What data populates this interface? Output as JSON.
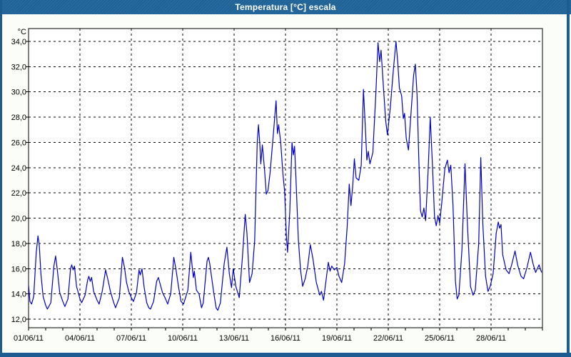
{
  "window": {
    "title": "Temperatura [°C] escala"
  },
  "colors": {
    "titlebar": "#1F6499",
    "frame": "#1C5C90",
    "content_background": "#FBFDF9",
    "plot_background": "#FFFFFF",
    "grid": "#000000",
    "line": "#0000C8",
    "title_text": "#FFFFFF",
    "label_text": "#000000"
  },
  "chart_data": {
    "type": "line",
    "title": "Temperatura [°C] escala",
    "unit_label": "°C",
    "ylabel": "°C",
    "xlabel": "",
    "ylim": [
      12,
      34
    ],
    "ytick_step": 2,
    "yticks": [
      12,
      14,
      16,
      18,
      20,
      22,
      24,
      26,
      28,
      30,
      32,
      34
    ],
    "ytick_labels": [
      "12,0",
      "14,0",
      "16,0",
      "18,0",
      "20,0",
      "22,0",
      "24,0",
      "26,0",
      "28,0",
      "30,0",
      "32,0",
      "34,0"
    ],
    "x_span_days": 30,
    "x_start_date": "01/06/11",
    "xticks": [
      {
        "day": 0,
        "label": "01/06/11"
      },
      {
        "day": 3,
        "label": "04/06/11"
      },
      {
        "day": 6,
        "label": "07/06/11"
      },
      {
        "day": 9,
        "label": "10/06/11"
      },
      {
        "day": 12,
        "label": "13/06/11"
      },
      {
        "day": 15,
        "label": "16/06/11"
      },
      {
        "day": 18,
        "label": "19/06/11"
      },
      {
        "day": 21,
        "label": "22/06/11"
      },
      {
        "day": 24,
        "label": "25/06/11"
      },
      {
        "day": 27,
        "label": "28/06/11"
      }
    ],
    "grid_days": [
      3,
      6,
      9,
      12,
      15,
      18,
      21,
      24,
      27
    ],
    "minor_tick_every_days": 1,
    "grid": true,
    "legend": "none",
    "series": [
      {
        "name": "Temperatura [°C]",
        "color": "#0000C8",
        "points": [
          [
            0,
            14.7
          ],
          [
            0.08,
            13.4
          ],
          [
            0.18,
            13.2
          ],
          [
            0.3,
            13.8
          ],
          [
            0.45,
            17.3
          ],
          [
            0.55,
            18.6
          ],
          [
            0.63,
            17.8
          ],
          [
            0.72,
            15.6
          ],
          [
            0.85,
            13.8
          ],
          [
            1,
            13.1
          ],
          [
            1.1,
            12.8
          ],
          [
            1.3,
            13.3
          ],
          [
            1.48,
            16.2
          ],
          [
            1.58,
            17
          ],
          [
            1.68,
            15.9
          ],
          [
            1.82,
            14.1
          ],
          [
            2,
            13.4
          ],
          [
            2.12,
            13
          ],
          [
            2.3,
            13.6
          ],
          [
            2.45,
            16
          ],
          [
            2.52,
            16.3
          ],
          [
            2.6,
            15.9
          ],
          [
            2.68,
            16.2
          ],
          [
            2.8,
            14.6
          ],
          [
            3,
            13.6
          ],
          [
            3.1,
            13.3
          ],
          [
            3.3,
            13.9
          ],
          [
            3.45,
            15.1
          ],
          [
            3.52,
            15.4
          ],
          [
            3.6,
            15
          ],
          [
            3.68,
            15.3
          ],
          [
            3.8,
            14.2
          ],
          [
            4,
            13.5
          ],
          [
            4.12,
            13.2
          ],
          [
            4.3,
            14.2
          ],
          [
            4.5,
            15.9
          ],
          [
            4.62,
            15.2
          ],
          [
            4.78,
            14.2
          ],
          [
            4.95,
            13.4
          ],
          [
            5.08,
            12.9
          ],
          [
            5.3,
            13.7
          ],
          [
            5.48,
            16.9
          ],
          [
            5.6,
            16.1
          ],
          [
            5.72,
            14.9
          ],
          [
            5.85,
            14.2
          ],
          [
            6,
            13.7
          ],
          [
            6.12,
            13.4
          ],
          [
            6.3,
            14.1
          ],
          [
            6.45,
            15.9
          ],
          [
            6.52,
            15.5
          ],
          [
            6.62,
            16
          ],
          [
            6.75,
            14.5
          ],
          [
            6.9,
            13.3
          ],
          [
            7.02,
            12.9
          ],
          [
            7.12,
            12.8
          ],
          [
            7.3,
            13.4
          ],
          [
            7.48,
            15
          ],
          [
            7.58,
            15.3
          ],
          [
            7.68,
            14.8
          ],
          [
            7.82,
            14.1
          ],
          [
            8,
            13.6
          ],
          [
            8.12,
            13.2
          ],
          [
            8.3,
            14
          ],
          [
            8.48,
            16.9
          ],
          [
            8.6,
            16
          ],
          [
            8.75,
            14.6
          ],
          [
            8.9,
            13.4
          ],
          [
            9.05,
            13.2
          ],
          [
            9.3,
            14.3
          ],
          [
            9.47,
            17.3
          ],
          [
            9.55,
            16.2
          ],
          [
            9.62,
            15.3
          ],
          [
            9.68,
            15.8
          ],
          [
            9.8,
            14.3
          ],
          [
            9.95,
            14
          ],
          [
            10.1,
            12.9
          ],
          [
            10.2,
            13.3
          ],
          [
            10.42,
            16.6
          ],
          [
            10.5,
            16.9
          ],
          [
            10.58,
            16.4
          ],
          [
            10.68,
            15.4
          ],
          [
            10.8,
            14.2
          ],
          [
            10.95,
            12.9
          ],
          [
            11.05,
            12.7
          ],
          [
            11.2,
            13.3
          ],
          [
            11.42,
            16.4
          ],
          [
            11.58,
            17.7
          ],
          [
            11.72,
            15.6
          ],
          [
            11.85,
            14.5
          ],
          [
            11.95,
            16
          ],
          [
            12.1,
            14.6
          ],
          [
            12.3,
            13.7
          ],
          [
            12.48,
            16.8
          ],
          [
            12.65,
            20.3
          ],
          [
            12.75,
            18.8
          ],
          [
            12.9,
            14.9
          ],
          [
            13.05,
            15.6
          ],
          [
            13.2,
            18.2
          ],
          [
            13.35,
            26
          ],
          [
            13.42,
            27.4
          ],
          [
            13.5,
            25.9
          ],
          [
            13.56,
            24.3
          ],
          [
            13.65,
            25.8
          ],
          [
            13.78,
            23.8
          ],
          [
            13.88,
            21.9
          ],
          [
            13.98,
            22.2
          ],
          [
            14.1,
            23.6
          ],
          [
            14.3,
            26.8
          ],
          [
            14.45,
            29.3
          ],
          [
            14.53,
            26.7
          ],
          [
            14.6,
            27.4
          ],
          [
            14.72,
            26
          ],
          [
            14.85,
            23.5
          ],
          [
            14.95,
            22.1
          ],
          [
            15.05,
            18.6
          ],
          [
            15.12,
            17.3
          ],
          [
            15.25,
            20.5
          ],
          [
            15.38,
            26
          ],
          [
            15.46,
            25
          ],
          [
            15.53,
            25.7
          ],
          [
            15.62,
            22.8
          ],
          [
            15.75,
            18.3
          ],
          [
            15.88,
            15.9
          ],
          [
            16,
            14.6
          ],
          [
            16.15,
            15.2
          ],
          [
            16.3,
            16.2
          ],
          [
            16.45,
            17.9
          ],
          [
            16.6,
            16.8
          ],
          [
            16.8,
            14.9
          ],
          [
            17,
            13.9
          ],
          [
            17.1,
            14.2
          ],
          [
            17.22,
            13.5
          ],
          [
            17.35,
            14.9
          ],
          [
            17.5,
            16.5
          ],
          [
            17.6,
            15.8
          ],
          [
            17.7,
            16.2
          ],
          [
            17.85,
            15.9
          ],
          [
            18,
            16.1
          ],
          [
            18.12,
            15.4
          ],
          [
            18.28,
            14.9
          ],
          [
            18.45,
            16.4
          ],
          [
            18.6,
            19.3
          ],
          [
            18.72,
            22.7
          ],
          [
            18.82,
            21
          ],
          [
            18.92,
            22.5
          ],
          [
            19.02,
            24.7
          ],
          [
            19.12,
            23.2
          ],
          [
            19.28,
            23
          ],
          [
            19.42,
            24.2
          ],
          [
            19.55,
            30.2
          ],
          [
            19.65,
            27.5
          ],
          [
            19.75,
            24.6
          ],
          [
            19.83,
            25.3
          ],
          [
            19.93,
            24.3
          ],
          [
            20.1,
            25.2
          ],
          [
            20.28,
            30
          ],
          [
            20.4,
            33.9
          ],
          [
            20.5,
            32.4
          ],
          [
            20.58,
            33.3
          ],
          [
            20.72,
            30.3
          ],
          [
            20.85,
            27.7
          ],
          [
            20.95,
            26.6
          ],
          [
            21.12,
            28.8
          ],
          [
            21.3,
            31.8
          ],
          [
            21.45,
            34
          ],
          [
            21.55,
            32.4
          ],
          [
            21.65,
            30.3
          ],
          [
            21.78,
            29.7
          ],
          [
            21.88,
            27.9
          ],
          [
            21.95,
            28.3
          ],
          [
            22.05,
            26.3
          ],
          [
            22.18,
            25.4
          ],
          [
            22.32,
            28.2
          ],
          [
            22.48,
            31.3
          ],
          [
            22.58,
            32.2
          ],
          [
            22.68,
            29.8
          ],
          [
            22.78,
            24.8
          ],
          [
            22.88,
            20.6
          ],
          [
            22.98,
            20.1
          ],
          [
            23.08,
            20.8
          ],
          [
            23.18,
            19.8
          ],
          [
            23.32,
            23.6
          ],
          [
            23.45,
            28
          ],
          [
            23.58,
            24.2
          ],
          [
            23.7,
            20.1
          ],
          [
            23.8,
            19.4
          ],
          [
            23.9,
            20.2
          ],
          [
            24,
            19.6
          ],
          [
            24.12,
            21.2
          ],
          [
            24.3,
            23.9
          ],
          [
            24.45,
            24.6
          ],
          [
            24.55,
            23.6
          ],
          [
            24.65,
            24.2
          ],
          [
            24.78,
            21
          ],
          [
            24.92,
            15
          ],
          [
            25.02,
            13.6
          ],
          [
            25.12,
            13.9
          ],
          [
            25.3,
            17.5
          ],
          [
            25.48,
            24.3
          ],
          [
            25.62,
            19.5
          ],
          [
            25.8,
            14.6
          ],
          [
            25.95,
            13.9
          ],
          [
            26.08,
            14.3
          ],
          [
            26.28,
            18
          ],
          [
            26.4,
            24.8
          ],
          [
            26.52,
            19.5
          ],
          [
            26.68,
            15.4
          ],
          [
            26.82,
            14.2
          ],
          [
            26.95,
            14.6
          ],
          [
            27.12,
            15.6
          ],
          [
            27.3,
            18.8
          ],
          [
            27.42,
            19.7
          ],
          [
            27.5,
            19.2
          ],
          [
            27.58,
            19.5
          ],
          [
            27.68,
            17.1
          ],
          [
            27.88,
            15.9
          ],
          [
            28.05,
            15.6
          ],
          [
            28.2,
            16.3
          ],
          [
            28.4,
            17.4
          ],
          [
            28.55,
            16.3
          ],
          [
            28.75,
            15.4
          ],
          [
            28.9,
            15.2
          ],
          [
            29.1,
            16.1
          ],
          [
            29.3,
            17.3
          ],
          [
            29.45,
            16.4
          ],
          [
            29.6,
            15.7
          ],
          [
            29.8,
            16.3
          ],
          [
            29.95,
            15.7
          ]
        ]
      }
    ]
  }
}
